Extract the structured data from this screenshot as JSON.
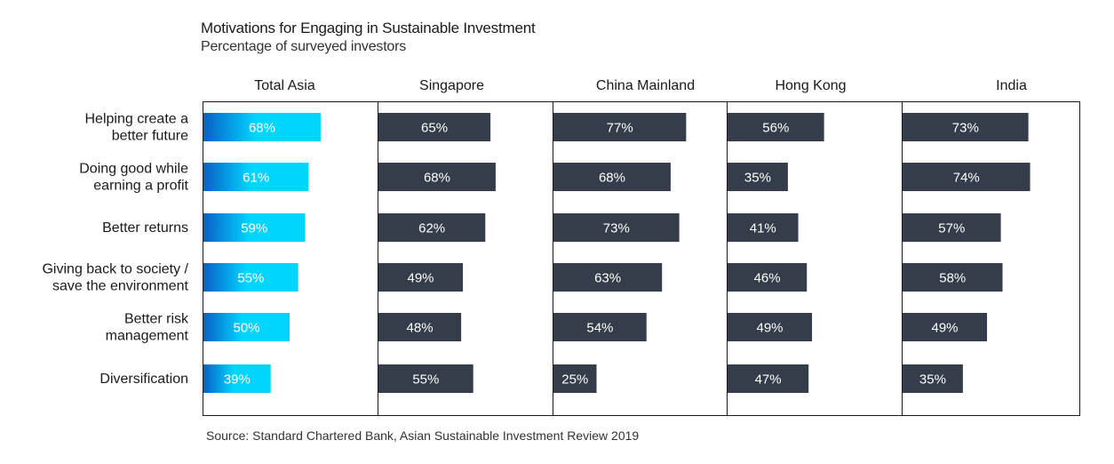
{
  "title": "Motivations for Engaging in Sustainable Investment",
  "subtitle": "Percentage of surveyed investors",
  "source": "Source: Standard Chartered Bank, Asian Sustainable Investment Review 2019",
  "colors": {
    "highlight_start": "#0a5fc6",
    "highlight_end": "#00d5ff",
    "bar": "#343d49",
    "label_light": "#ffffff",
    "border": "#1a1a1a"
  },
  "chart_data": {
    "type": "bar",
    "orientation": "horizontal",
    "categories": [
      [
        "Helping create a",
        "better future"
      ],
      [
        "Doing good while",
        "earning a profit"
      ],
      [
        "Better returns"
      ],
      [
        "Giving back to society /",
        "save the environment"
      ],
      [
        "Better risk",
        "management"
      ],
      [
        "Diversification"
      ]
    ],
    "series": [
      {
        "name": "Total Asia",
        "values": [
          68,
          61,
          59,
          55,
          50,
          39
        ]
      },
      {
        "name": "Singapore",
        "values": [
          65,
          68,
          62,
          49,
          48,
          55
        ]
      },
      {
        "name": "China Mainland",
        "values": [
          77,
          68,
          73,
          63,
          54,
          25
        ]
      },
      {
        "name": "Hong Kong",
        "values": [
          56,
          35,
          41,
          46,
          49,
          47
        ]
      },
      {
        "name": "India",
        "values": [
          73,
          74,
          57,
          58,
          49,
          35
        ]
      }
    ],
    "value_suffix": "%",
    "xlim": [
      0,
      100
    ],
    "grid": false,
    "legend": "none"
  }
}
